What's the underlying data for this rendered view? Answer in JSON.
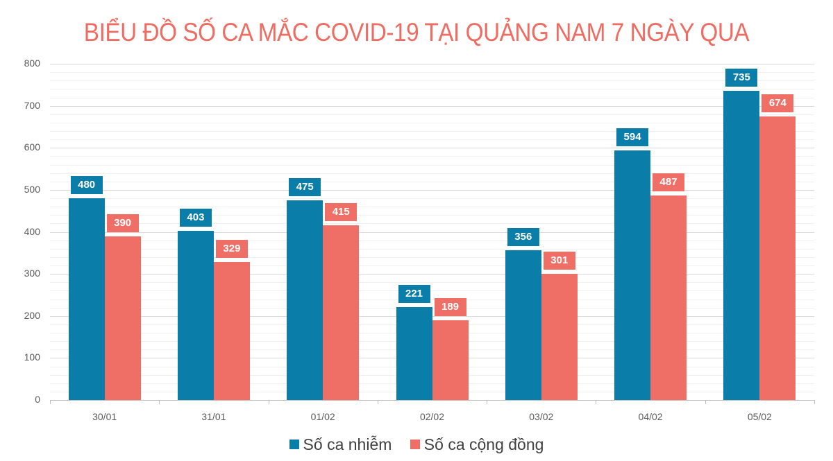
{
  "chart_data": {
    "type": "bar",
    "title": "BIỂU ĐỒ SỐ CA MẮC COVID-19 TẠI QUẢNG NAM 7 NGÀY QUA",
    "xlabel": "",
    "ylabel": "",
    "categories": [
      "30/01",
      "31/01",
      "01/02",
      "02/02",
      "03/02",
      "04/02",
      "05/02"
    ],
    "series": [
      {
        "name": "Số ca nhiễm",
        "color": "#0a7ea8",
        "values": [
          480,
          403,
          475,
          221,
          356,
          594,
          735
        ]
      },
      {
        "name": "Số ca cộng đồng",
        "color": "#ef6f66",
        "values": [
          390,
          329,
          415,
          189,
          301,
          487,
          674
        ]
      }
    ],
    "ylim": [
      0,
      800
    ],
    "yticks": [
      "0",
      "100",
      "200",
      "300",
      "400",
      "500",
      "600",
      "700",
      "800"
    ],
    "grid": true,
    "legend_position": "bottom",
    "data_labels": true
  }
}
